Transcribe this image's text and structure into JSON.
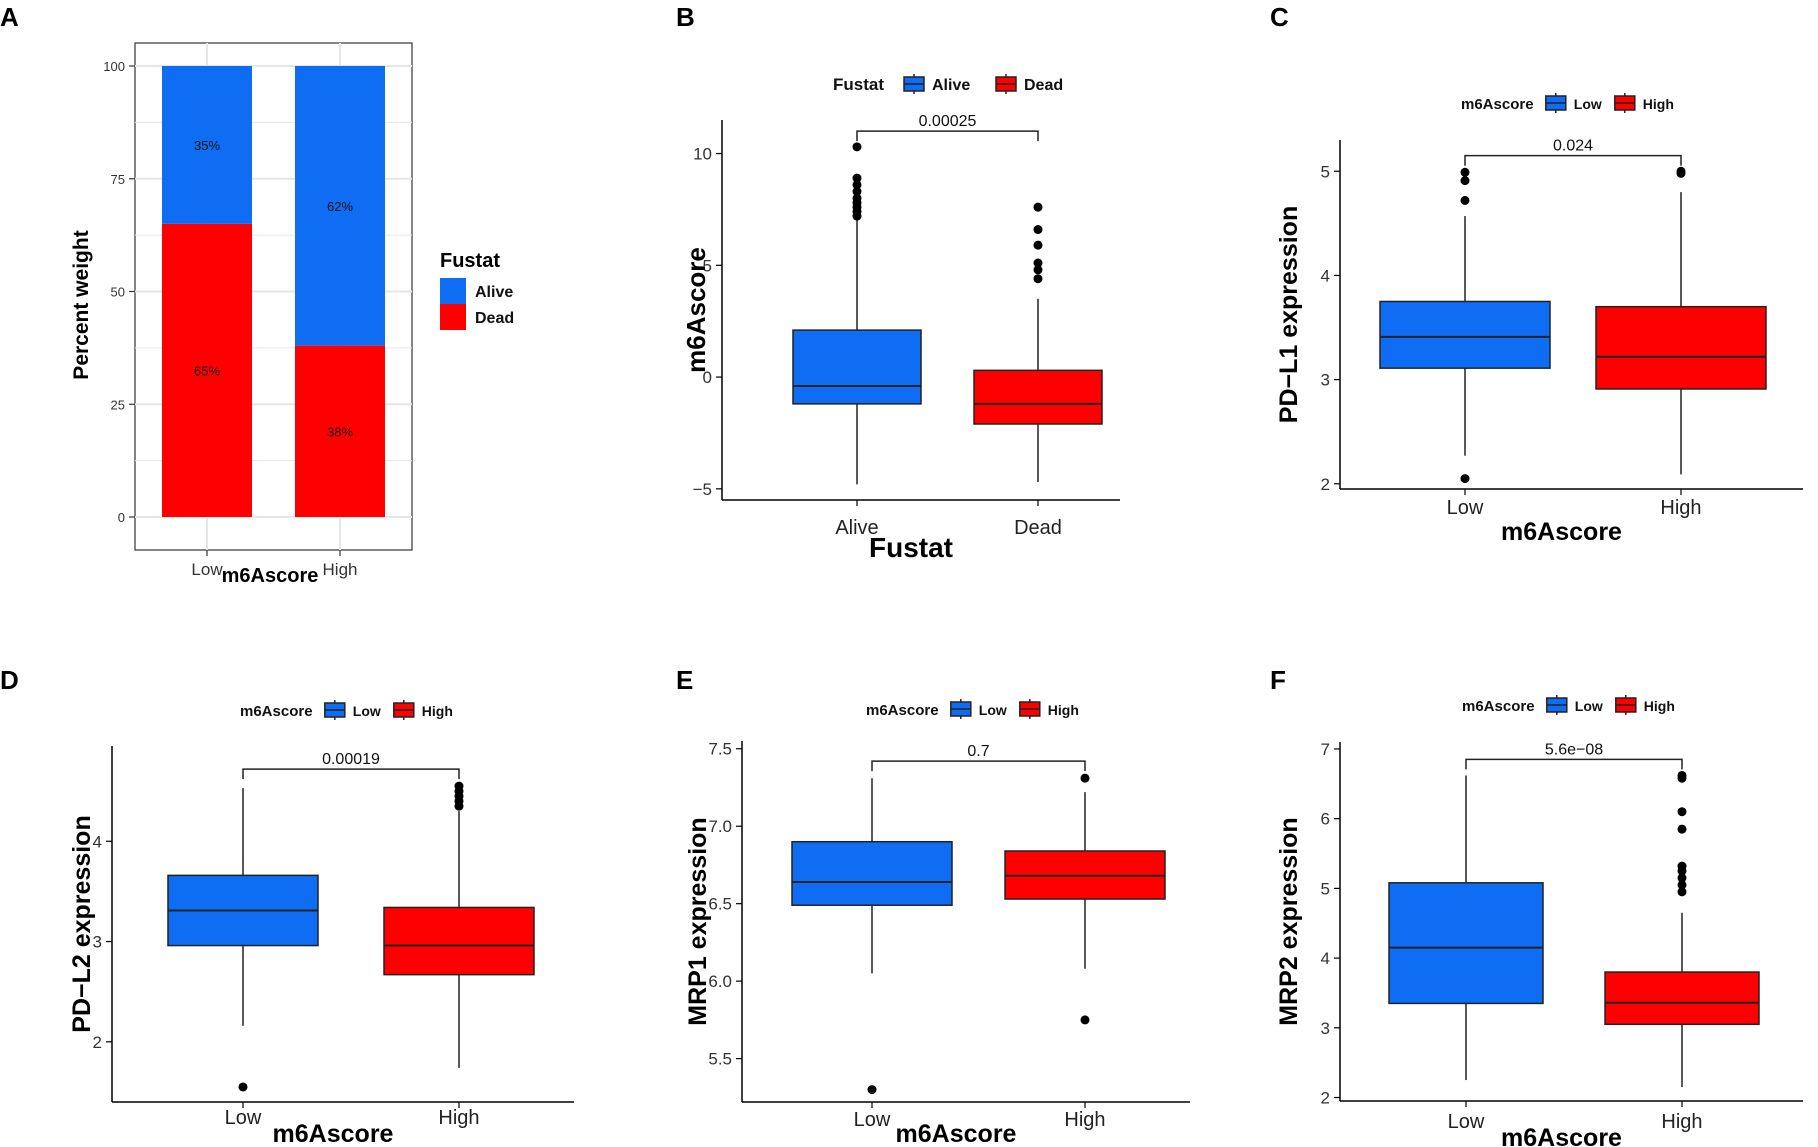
{
  "colors": {
    "low_alive": "#0f6df3",
    "high_dead": "#ff0000",
    "grid": "#e6e6e6",
    "panel_bg": "#ffffff"
  },
  "chart_data": [
    {
      "panel": "A",
      "type": "bar",
      "stacked": true,
      "categories": [
        "Low",
        "High"
      ],
      "series": [
        {
          "name": "Dead",
          "values": [
            65,
            38
          ],
          "labels": [
            "65%",
            "38%"
          ]
        },
        {
          "name": "Alive",
          "values": [
            35,
            62
          ],
          "labels": [
            "35%",
            "62%"
          ]
        }
      ],
      "xlabel": "m6Ascore",
      "ylabel": "Percent weight",
      "ylim": [
        0,
        100
      ],
      "yticks": [
        0,
        25,
        50,
        75,
        100
      ],
      "legend_title": "Fustat",
      "legend": [
        "Alive",
        "Dead"
      ],
      "legend_position": "right",
      "grid": true
    },
    {
      "panel": "B",
      "type": "box",
      "categories": [
        "Alive",
        "Dead"
      ],
      "boxes": [
        {
          "whisker_low": -4.8,
          "q1": -1.2,
          "median": -0.4,
          "q3": 2.1,
          "whisker_high": 7.1,
          "outliers": [
            7.2,
            7.4,
            7.6,
            7.8,
            8.0,
            8.3,
            8.6,
            8.9,
            10.3
          ]
        },
        {
          "whisker_low": -4.7,
          "q1": -2.1,
          "median": -1.2,
          "q3": 0.3,
          "whisker_high": 3.5,
          "outliers": [
            4.4,
            4.8,
            5.1,
            5.9,
            6.6,
            7.6
          ]
        }
      ],
      "xlabel": "Fustat",
      "ylabel": "m6Ascore",
      "ylim": [
        -5.5,
        11.5
      ],
      "yticks": [
        -5,
        0,
        5,
        10
      ],
      "legend_title": "Fustat",
      "legend": [
        "Alive",
        "Dead"
      ],
      "pvalue": "0.00025",
      "bracket_y": 11.0
    },
    {
      "panel": "C",
      "type": "box",
      "categories": [
        "Low",
        "High"
      ],
      "boxes": [
        {
          "whisker_low": 2.27,
          "q1": 3.11,
          "median": 3.41,
          "q3": 3.75,
          "whisker_high": 4.57,
          "outliers": [
            2.05,
            4.72,
            4.91,
            4.99
          ]
        },
        {
          "whisker_low": 2.09,
          "q1": 2.91,
          "median": 3.22,
          "q3": 3.7,
          "whisker_high": 4.8,
          "outliers": [
            4.98,
            5.0
          ]
        }
      ],
      "xlabel": "m6Ascore",
      "ylabel": "PD−L1 expression",
      "ylim": [
        1.95,
        5.3
      ],
      "yticks": [
        2,
        3,
        4,
        5
      ],
      "legend_title": "m6Ascore",
      "legend": [
        "Low",
        "High"
      ],
      "pvalue": "0.024",
      "bracket_y": 5.15
    },
    {
      "panel": "D",
      "type": "box",
      "categories": [
        "Low",
        "High"
      ],
      "boxes": [
        {
          "whisker_low": 2.16,
          "q1": 2.96,
          "median": 3.31,
          "q3": 3.66,
          "whisker_high": 4.53,
          "outliers": [
            1.55
          ]
        },
        {
          "whisker_low": 1.74,
          "q1": 2.67,
          "median": 2.96,
          "q3": 3.34,
          "whisker_high": 4.3,
          "outliers": [
            4.35,
            4.4,
            4.45,
            4.5,
            4.55
          ]
        }
      ],
      "xlabel": "m6Ascore",
      "ylabel": "PD−L2 expression",
      "ylim": [
        1.4,
        4.95
      ],
      "yticks": [
        2,
        3,
        4
      ],
      "legend_title": "m6Ascore",
      "legend": [
        "Low",
        "High"
      ],
      "pvalue": "0.00019",
      "bracket_y": 4.72
    },
    {
      "panel": "E",
      "type": "box",
      "categories": [
        "Low",
        "High"
      ],
      "boxes": [
        {
          "whisker_low": 6.05,
          "q1": 6.49,
          "median": 6.64,
          "q3": 6.9,
          "whisker_high": 7.31,
          "outliers": [
            5.3
          ]
        },
        {
          "whisker_low": 6.08,
          "q1": 6.53,
          "median": 6.68,
          "q3": 6.84,
          "whisker_high": 7.22,
          "outliers": [
            5.75,
            7.31
          ]
        }
      ],
      "xlabel": "m6Ascore",
      "ylabel": "MRP1 expression",
      "ylim": [
        5.22,
        7.55
      ],
      "yticks": [
        5.5,
        6.0,
        6.5,
        7.0,
        7.5
      ],
      "ytick_labels": [
        "5.5",
        "6.0",
        "6.5",
        "7.0",
        "7.5"
      ],
      "legend_title": "m6Ascore",
      "legend": [
        "Low",
        "High"
      ],
      "pvalue": "0.7",
      "bracket_y": 7.42
    },
    {
      "panel": "F",
      "type": "box",
      "categories": [
        "Low",
        "High"
      ],
      "boxes": [
        {
          "whisker_low": 2.25,
          "q1": 3.35,
          "median": 4.15,
          "q3": 5.08,
          "whisker_high": 6.62,
          "outliers": []
        },
        {
          "whisker_low": 2.15,
          "q1": 3.05,
          "median": 3.36,
          "q3": 3.8,
          "whisker_high": 4.65,
          "outliers": [
            4.95,
            5.05,
            5.15,
            5.25,
            5.32,
            5.85,
            6.1,
            6.58,
            6.62
          ]
        }
      ],
      "xlabel": "m6Ascore",
      "ylabel": "MRP2 expression",
      "ylim": [
        1.95,
        7.1
      ],
      "yticks": [
        2,
        3,
        4,
        5,
        6,
        7
      ],
      "legend_title": "m6Ascore",
      "legend": [
        "Low",
        "High"
      ],
      "pvalue": "5.6e−08",
      "bracket_y": 6.85
    }
  ]
}
